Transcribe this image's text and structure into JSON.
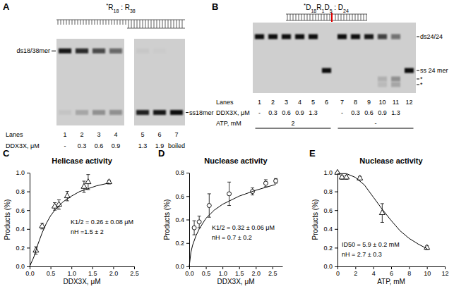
{
  "gels": [
    {
      "panel": "A",
      "construct": "*R18 : R38",
      "lane_label": "Lanes",
      "lanes": [
        1,
        2,
        3,
        4,
        5,
        6,
        7
      ],
      "conditions": [
        {
          "label": "DDX3X, μM",
          "values": [
            "-",
            0.3,
            0.6,
            0.9,
            1.3,
            1.9,
            "boiled"
          ]
        }
      ],
      "bands": [
        {
          "name": "ds18/38mer",
          "intensity": [
            0.95,
            0.85,
            0.7,
            0.55,
            0.04,
            0.02,
            0
          ]
        },
        {
          "name": "ss18mer",
          "intensity": [
            0.05,
            0.2,
            0.3,
            0.35,
            0.9,
            0.95,
            1.0
          ]
        }
      ]
    },
    {
      "panel": "B",
      "construct": "*D18R1D5 : D24",
      "lane_label": "Lanes",
      "lanes": [
        1,
        2,
        3,
        4,
        5,
        6,
        7,
        8,
        9,
        10,
        11,
        12
      ],
      "conditions": [
        {
          "label": "DDX3X, μM",
          "values": [
            "-",
            0.3,
            0.6,
            0.9,
            1.3,
            null,
            "-",
            0.3,
            0.6,
            0.9,
            1.3,
            null
          ]
        },
        {
          "label": "ATP, mM",
          "groups": [
            {
              "value": 2,
              "lanes": [
                1,
                6
              ]
            },
            {
              "value": "-",
              "lanes": [
                7,
                12
              ]
            }
          ]
        }
      ],
      "bands": [
        {
          "name": "ds24/24",
          "intensity": [
            1.0,
            1.0,
            1.0,
            1.0,
            1.0,
            0,
            1.0,
            1.0,
            0.95,
            0.75,
            0.5,
            0
          ]
        },
        {
          "name": "ss 24 mer",
          "intensity": [
            0,
            0,
            0,
            0,
            0,
            1.0,
            0,
            0,
            0,
            0,
            0,
            1.0
          ]
        },
        {
          "name": "*",
          "intensity": [
            0,
            0,
            0,
            0,
            0,
            0,
            0,
            0,
            0,
            0.15,
            0.3,
            0
          ]
        },
        {
          "name": "*",
          "intensity": [
            0,
            0,
            0,
            0,
            0,
            0,
            0,
            0,
            0,
            0.1,
            0.2,
            0
          ]
        }
      ]
    }
  ],
  "chart_data": [
    {
      "panel": "C",
      "type": "scatter",
      "title": "Helicase activity",
      "x_label": "DDX3X, μM",
      "y_label": "Products (%)",
      "xlim": [
        0,
        2.5
      ],
      "ylim": [
        0,
        1
      ],
      "xticks": [
        {
          "value": 0,
          "label": "0.0"
        },
        0.5,
        {
          "value": 1,
          "label": "1.0"
        },
        1.5,
        {
          "value": 2,
          "label": "2.0"
        },
        2.5
      ],
      "yticks": [
        {
          "value": 0,
          "label": "0.0"
        },
        0.2,
        0.4,
        0.6,
        0.8,
        {
          "value": 1,
          "label": "1.0"
        }
      ],
      "annotations": [
        "K1/2 = 0.26 ± 0.08 μM",
        "nH =1.5 ± 2"
      ],
      "series": [
        {
          "type": "scatter",
          "marker": "triangle",
          "color": "#000000",
          "x": [
            0.15,
            0.3,
            0.6,
            0.7,
            0.9,
            1.3,
            1.4,
            1.9
          ],
          "values": [
            0.17,
            0.43,
            0.64,
            0.66,
            0.75,
            0.85,
            0.9,
            0.9
          ],
          "errors": [
            0.04,
            0.03,
            0.04,
            0.05,
            0.05,
            0.06,
            0.08,
            0.02
          ]
        },
        {
          "type": "line",
          "color": "#000000",
          "x": [
            0,
            0.1,
            0.2,
            0.3,
            0.4,
            0.5,
            0.6,
            0.8,
            1.0,
            1.2,
            1.4,
            1.6,
            1.9
          ],
          "values": [
            0,
            0.1,
            0.24,
            0.36,
            0.46,
            0.54,
            0.6,
            0.69,
            0.75,
            0.8,
            0.83,
            0.86,
            0.89
          ]
        }
      ]
    },
    {
      "panel": "D",
      "type": "scatter",
      "title": "Nuclease activity",
      "x_label": "DDX3X, μM",
      "y_label": "Products (%)",
      "xlim": [
        0,
        2.8
      ],
      "ylim": [
        0,
        0.8
      ],
      "xticks": [
        {
          "value": 0,
          "label": "0.0"
        },
        0.5,
        {
          "value": 1,
          "label": "1.0"
        },
        1.5,
        {
          "value": 2,
          "label": "2.0"
        },
        2.5
      ],
      "yticks": [
        {
          "value": 0,
          "label": "0.0"
        },
        0.2,
        0.4,
        0.6,
        0.8
      ],
      "annotations": [
        "K1/2 = 0.32 ± 0.06 μM",
        "nH = 0.7 ± 0.2"
      ],
      "series": [
        {
          "type": "scatter",
          "marker": "circle",
          "color": "#000000",
          "x": [
            0.15,
            0.3,
            0.6,
            1.2,
            1.9,
            2.3,
            2.6
          ],
          "values": [
            0.33,
            0.38,
            0.52,
            0.62,
            0.64,
            0.71,
            0.73
          ],
          "errors": [
            0.06,
            0.05,
            0.1,
            0.1,
            0.03,
            0.03,
            0.02
          ]
        },
        {
          "type": "line",
          "color": "#000000",
          "x": [
            0,
            0.05,
            0.1,
            0.2,
            0.3,
            0.5,
            0.75,
            1.0,
            1.5,
            2.0,
            2.6
          ],
          "values": [
            0,
            0.12,
            0.18,
            0.26,
            0.32,
            0.41,
            0.48,
            0.53,
            0.6,
            0.65,
            0.7
          ]
        }
      ]
    },
    {
      "panel": "E",
      "type": "scatter",
      "title": "Nuclease activity",
      "x_label": "ATP, mM",
      "y_label": "Products (%)",
      "xlim": [
        0,
        12
      ],
      "ylim": [
        0,
        1
      ],
      "xticks": [
        0,
        2,
        4,
        6,
        8,
        10,
        12
      ],
      "yticks": [
        {
          "value": 0,
          "label": "0.0"
        },
        0.2,
        0.4,
        0.6,
        0.8,
        {
          "value": 1,
          "label": "1.0"
        }
      ],
      "annotations": [
        "ID50 = 5.9 ± 0.2 mM",
        "nH = 2.7 ± 0.3"
      ],
      "series": [
        {
          "type": "scatter",
          "marker": "triangle",
          "color": "#000000",
          "x": [
            0,
            0.5,
            1,
            2.5,
            5,
            10
          ],
          "values": [
            1.0,
            0.95,
            0.95,
            0.94,
            0.57,
            0.2
          ],
          "errors": [
            0,
            0.02,
            0.02,
            0.02,
            0.1,
            0.02
          ]
        },
        {
          "type": "line",
          "color": "#000000",
          "x": [
            0,
            1,
            2,
            3,
            4,
            5,
            6,
            7,
            8,
            9,
            10
          ],
          "values": [
            0.99,
            0.99,
            0.95,
            0.87,
            0.74,
            0.61,
            0.49,
            0.38,
            0.3,
            0.24,
            0.19
          ]
        }
      ]
    }
  ]
}
